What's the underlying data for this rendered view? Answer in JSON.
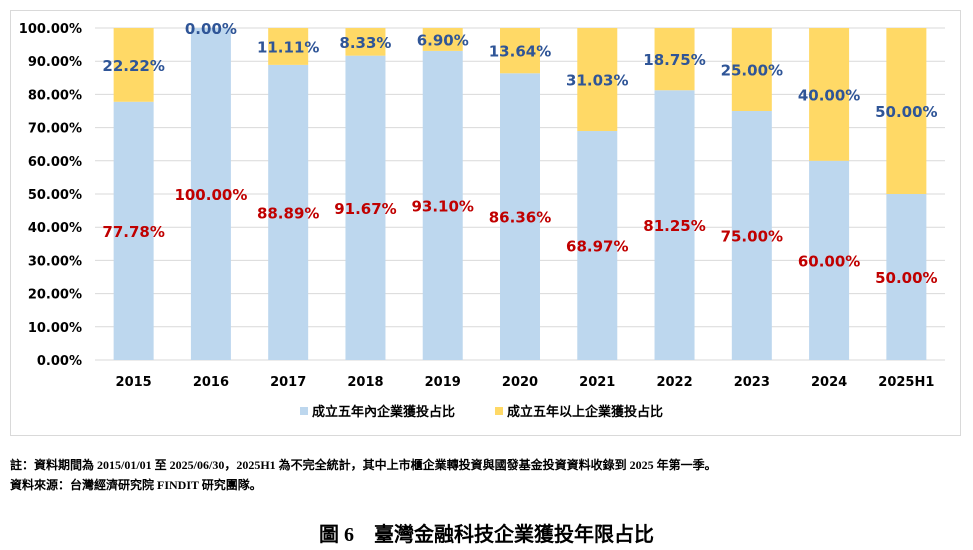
{
  "chart_data": {
    "type": "bar",
    "stacked": true,
    "categories": [
      "2015",
      "2016",
      "2017",
      "2018",
      "2019",
      "2020",
      "2021",
      "2022",
      "2023",
      "2024",
      "2025H1"
    ],
    "series": [
      {
        "name": "成立五年內企業獲投占比",
        "color": "#BDD7EE",
        "label_color": "#C00000",
        "values": [
          77.78,
          100.0,
          88.89,
          91.67,
          93.1,
          86.36,
          68.97,
          81.25,
          75.0,
          60.0,
          50.0
        ]
      },
      {
        "name": "成立五年以上企業獲投占比",
        "color": "#FFD966",
        "label_color": "#2F5597",
        "values": [
          22.22,
          0.0,
          11.11,
          8.33,
          6.9,
          13.64,
          31.03,
          18.75,
          25.0,
          40.0,
          50.0
        ]
      }
    ],
    "ylim": [
      0,
      100
    ],
    "yticks": [
      "0.00%",
      "10.00%",
      "20.00%",
      "30.00%",
      "40.00%",
      "50.00%",
      "60.00%",
      "70.00%",
      "80.00%",
      "90.00%",
      "100.00%"
    ],
    "grid": true,
    "legend": "bottom"
  },
  "notes": {
    "note": "註：資料期間為 2015/01/01 至 2025/06/30，2025H1 為不完全統計，其中上市櫃企業轉投資與國發基金投資資料收錄到 2025 年第一季。",
    "source": "資料來源：台灣經濟研究院 FINDIT 研究團隊。"
  },
  "caption": "圖 6　臺灣金融科技企業獲投年限占比"
}
